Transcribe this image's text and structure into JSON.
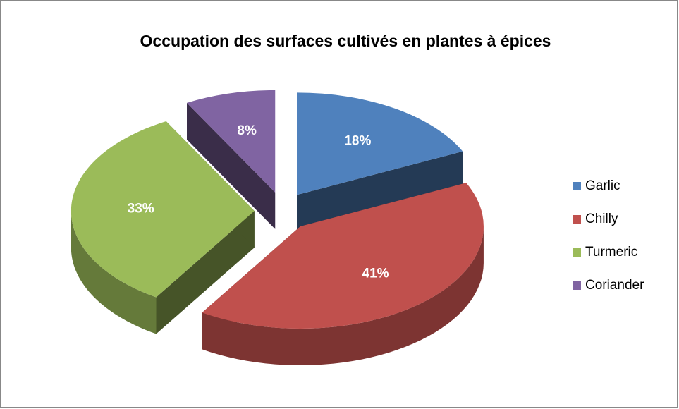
{
  "chart_data": {
    "type": "pie",
    "title": "Occupation des surfaces cultivés en plantes à épices",
    "categories": [
      "Garlic",
      "Chilly",
      "Turmeric",
      "Coriander"
    ],
    "values": [
      18,
      41,
      33,
      8
    ],
    "value_labels": [
      "18%",
      "41%",
      "33%",
      "8%"
    ],
    "colors": [
      "#4f81bd",
      "#c0504d",
      "#9bbb59",
      "#8064a2"
    ],
    "legend": "right"
  }
}
